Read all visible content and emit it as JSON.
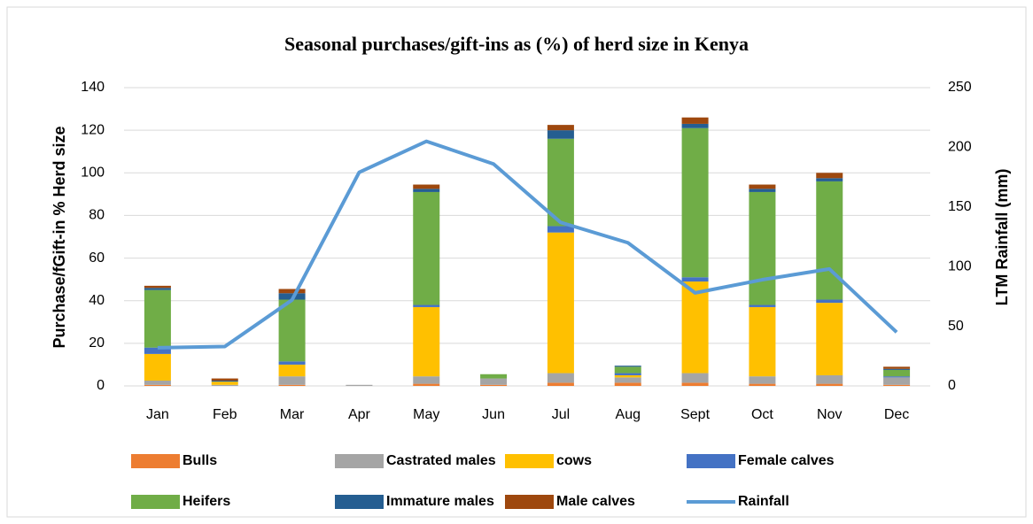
{
  "chart_data": {
    "type": "stacked_bar_line",
    "title": "Seasonal purchases/gift-ins as (%) of herd size in Kenya",
    "ylabel": "Purchase/fGift-in % Herd size",
    "y2label": "LTM Rainfall (mm)",
    "categories": [
      "Jan",
      "Feb",
      "Mar",
      "Apr",
      "May",
      "Jun",
      "Jul",
      "Aug",
      "Sept",
      "Oct",
      "Nov",
      "Dec"
    ],
    "ylim": [
      0,
      140
    ],
    "yticks": [
      0,
      20,
      40,
      60,
      80,
      100,
      120,
      140
    ],
    "y2lim": [
      0,
      250
    ],
    "y2ticks": [
      0,
      50,
      100,
      150,
      200,
      250
    ],
    "grid": true,
    "legend": "bottom",
    "series": [
      {
        "name": "Bulls",
        "color": "#ed7d31",
        "values": [
          0.5,
          0,
          0.5,
          0,
          1,
          0.5,
          1.5,
          1.5,
          1.5,
          1,
          1,
          0.5
        ]
      },
      {
        "name": "Castrated males",
        "color": "#a5a5a5",
        "values": [
          2,
          0.5,
          4,
          0.5,
          3.5,
          3,
          4.5,
          2.5,
          4.5,
          3.5,
          4,
          3.5
        ]
      },
      {
        "name": "cows",
        "color": "#ffc000",
        "values": [
          12.5,
          1.5,
          5.5,
          0,
          32.5,
          0,
          66,
          1,
          43,
          32.5,
          34,
          0
        ]
      },
      {
        "name": "Female calves",
        "color": "#4472c4",
        "values": [
          3,
          0,
          1.5,
          0,
          1,
          0,
          3,
          1,
          2,
          1,
          1.5,
          0.5
        ]
      },
      {
        "name": "Heifers",
        "color": "#70ad47",
        "values": [
          27,
          0,
          29,
          0,
          53,
          2,
          41,
          3,
          70,
          53,
          55.5,
          3
        ]
      },
      {
        "name": "Immature males",
        "color": "#255e91",
        "values": [
          1,
          0.5,
          3,
          0,
          1.5,
          0,
          4,
          0.5,
          2,
          1.5,
          1.5,
          0.5
        ]
      },
      {
        "name": "Male calves",
        "color": "#9e480e",
        "values": [
          1,
          1,
          2,
          0,
          2,
          0,
          2.5,
          0,
          3,
          2,
          2.5,
          1
        ]
      },
      {
        "name": "Rainfall",
        "color": "#5b9bd5",
        "axis": "y2",
        "type": "line",
        "values": [
          32,
          33,
          72,
          179,
          205,
          186,
          137,
          120,
          78,
          89,
          98,
          45
        ]
      }
    ]
  }
}
